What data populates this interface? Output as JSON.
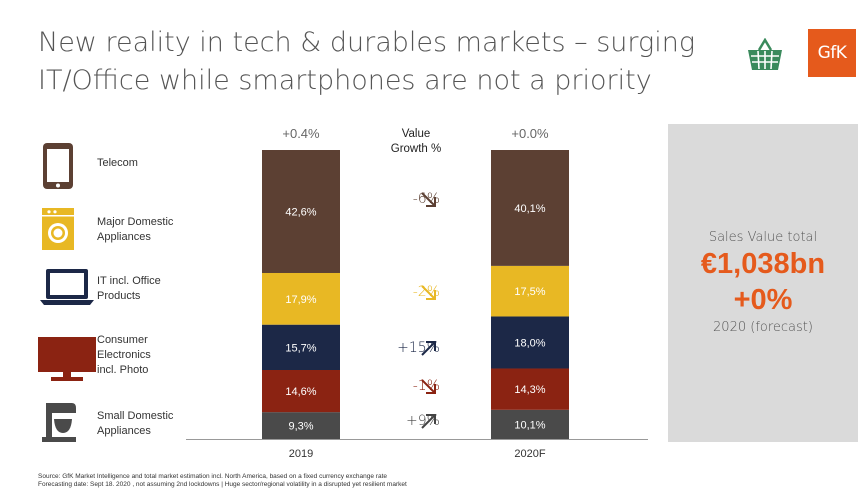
{
  "title": {
    "line1": "New reality in tech & durables markets – surging",
    "line2": "IT/Office while smartphones are not a priority"
  },
  "logo": {
    "text": "GfK",
    "icon": "shopping-basket-icon",
    "color": "#e55a1c"
  },
  "categories": [
    {
      "label": "Telecom",
      "icon": "smartphone-icon"
    },
    {
      "label": "Major Domestic Appliances",
      "icon": "washing-machine-icon"
    },
    {
      "label": "IT incl. Office Products",
      "icon": "laptop-icon"
    },
    {
      "label": "Consumer Electronics incl. Photo",
      "icon": "television-icon"
    },
    {
      "label": "Small Domestic Appliances",
      "icon": "stand-mixer-icon"
    }
  ],
  "growth": {
    "header_line1": "Value",
    "header_line2": "Growth %",
    "items": [
      {
        "value": "-6%",
        "direction": "down",
        "color": "#5c4033"
      },
      {
        "value": "-2%",
        "direction": "down",
        "color": "#e8b824"
      },
      {
        "value": "+15%",
        "direction": "up",
        "color": "#1c2847"
      },
      {
        "value": "-1%",
        "direction": "down",
        "color": "#8b2312"
      },
      {
        "value": "+9%",
        "direction": "up",
        "color": "#444444"
      }
    ]
  },
  "chart_data": {
    "type": "bar",
    "stacked": true,
    "normalized": true,
    "categories": [
      "2019",
      "2020F"
    ],
    "totals": [
      "+0.4%",
      "+0.0%"
    ],
    "series": [
      {
        "name": "Small Domestic Appliances",
        "values": [
          9.3,
          10.1
        ],
        "labels": [
          "9,3%",
          "10,1%"
        ],
        "color": "#4a4a4a"
      },
      {
        "name": "Consumer Electronics incl. Photo",
        "values": [
          14.6,
          14.3
        ],
        "labels": [
          "14,6%",
          "14,3%"
        ],
        "color": "#8b2312"
      },
      {
        "name": "IT incl. Office Products",
        "values": [
          15.7,
          18.0
        ],
        "labels": [
          "15,7%",
          "18,0%"
        ],
        "color": "#1c2847"
      },
      {
        "name": "Major Domestic Appliances",
        "values": [
          17.9,
          17.5
        ],
        "labels": [
          "17,9%",
          "17,5%"
        ],
        "color": "#e8b824"
      },
      {
        "name": "Telecom",
        "values": [
          42.6,
          40.1
        ],
        "labels": [
          "42,6%",
          "40,1%"
        ],
        "color": "#5c4033"
      }
    ],
    "ylim": [
      0,
      100
    ]
  },
  "panel": {
    "label": "Sales Value total",
    "value": "€1,038bn",
    "growth": "+0%",
    "year": "2020 (forecast)",
    "accent": "#e55a1c"
  },
  "footnote": {
    "line1": "Source: GfK Market Intelligence and total market estimation incl. North America, based on a fixed currency exchange rate",
    "line2": "Forecasting date: Sept 18. 2020 , not assuming 2nd lockdowns | Huge sector/regional volatility in a disrupted yet resilient market"
  }
}
